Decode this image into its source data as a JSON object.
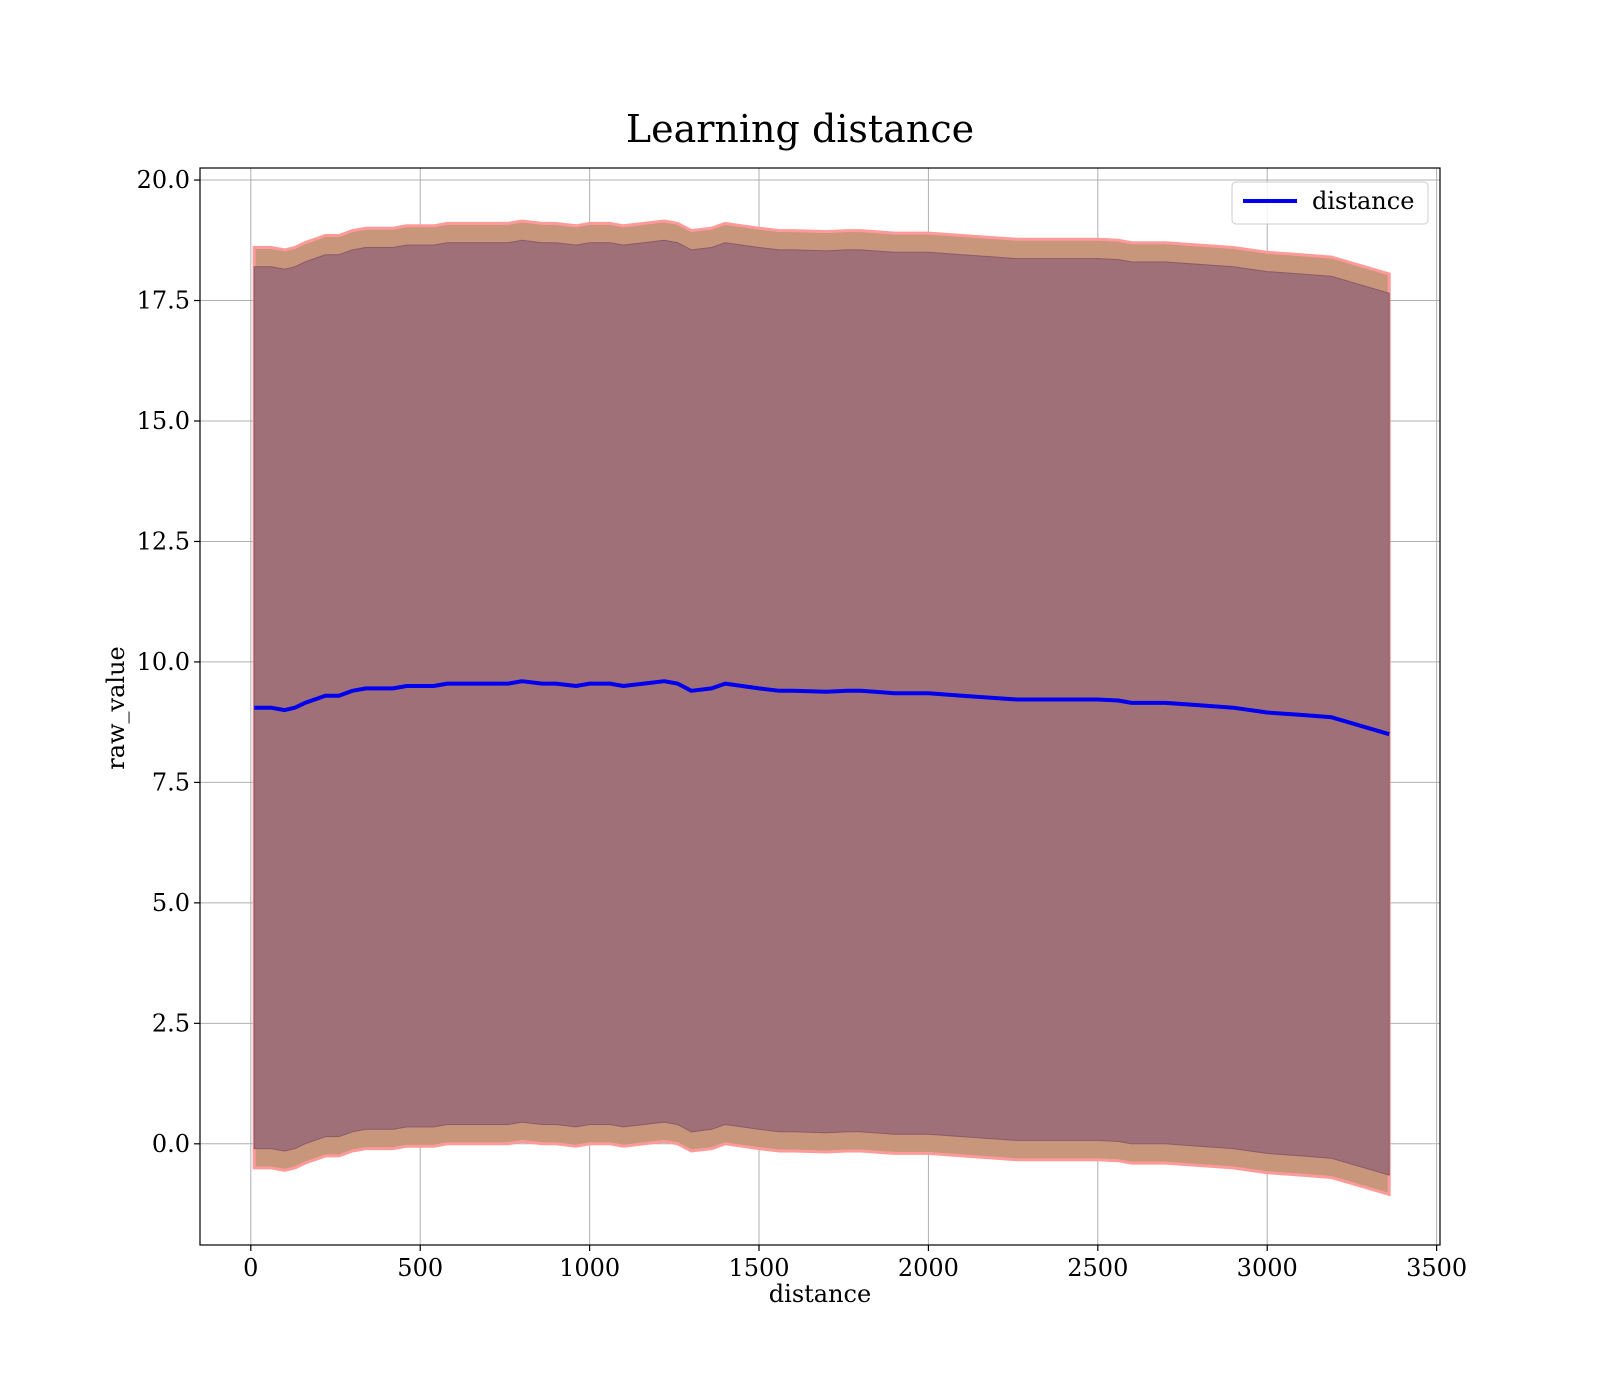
{
  "chart_data": {
    "type": "area",
    "title": "Learning distance",
    "xlabel": "distance",
    "ylabel": "raw_value",
    "xlim": [
      -150,
      3510
    ],
    "ylim": [
      -2.1,
      20.25
    ],
    "x_ticks": [
      "0",
      "500",
      "1000",
      "1500",
      "2000",
      "2500",
      "3000",
      "3500"
    ],
    "x_tick_values": [
      0,
      500,
      1000,
      1500,
      2000,
      2500,
      3000,
      3500
    ],
    "y_ticks": [
      "0.0",
      "2.5",
      "5.0",
      "7.5",
      "10.0",
      "12.5",
      "15.0",
      "17.5",
      "20.0"
    ],
    "y_tick_values": [
      0,
      2.5,
      5,
      7.5,
      10,
      12.5,
      15,
      17.5,
      20
    ],
    "grid": true,
    "legend": {
      "placement": "top-right",
      "entries": [
        "distance"
      ]
    },
    "x": [
      10,
      60,
      100,
      130,
      160,
      200,
      220,
      260,
      300,
      340,
      380,
      420,
      460,
      500,
      540,
      580,
      620,
      660,
      700,
      760,
      800,
      860,
      900,
      960,
      1000,
      1060,
      1100,
      1160,
      1220,
      1260,
      1300,
      1360,
      1400,
      1450,
      1500,
      1560,
      1600,
      1700,
      1760,
      1800,
      1900,
      2000,
      2100,
      2200,
      2260,
      2300,
      2400,
      2500,
      2560,
      2600,
      2700,
      2800,
      2900,
      3000,
      3100,
      3190,
      3360
    ],
    "series": [
      {
        "name": "distance",
        "color": "#0000ee",
        "values": [
          9.05,
          9.05,
          9.0,
          9.05,
          9.15,
          9.25,
          9.3,
          9.3,
          9.4,
          9.45,
          9.45,
          9.45,
          9.5,
          9.5,
          9.5,
          9.55,
          9.55,
          9.55,
          9.55,
          9.55,
          9.6,
          9.55,
          9.55,
          9.5,
          9.55,
          9.55,
          9.5,
          9.55,
          9.6,
          9.55,
          9.4,
          9.45,
          9.55,
          9.5,
          9.45,
          9.4,
          9.4,
          9.38,
          9.4,
          9.4,
          9.35,
          9.35,
          9.3,
          9.25,
          9.22,
          9.22,
          9.22,
          9.22,
          9.2,
          9.15,
          9.15,
          9.1,
          9.05,
          8.95,
          8.9,
          8.85,
          8.5
        ]
      }
    ],
    "bands": [
      {
        "name": "outer band",
        "fill": "#c8967a",
        "edge": "#ff9a9a",
        "offset_upper": 9.55,
        "offset_lower": 9.55
      },
      {
        "name": "inner band",
        "fill": "#a07078",
        "edge": "#8a5a6a",
        "offset_upper": 9.15,
        "offset_lower": 9.15
      }
    ]
  }
}
